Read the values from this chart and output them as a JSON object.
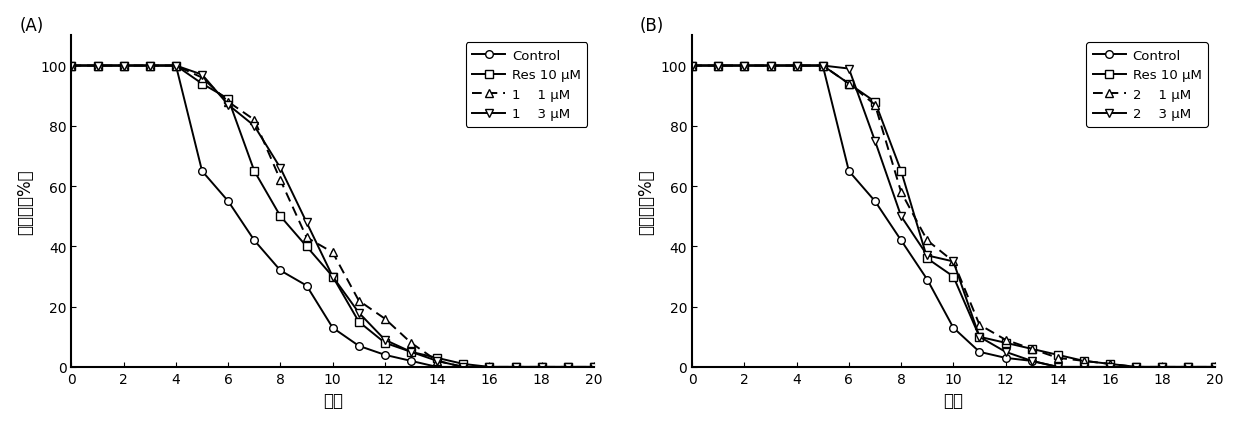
{
  "panel_A": {
    "label": "(A)",
    "series": [
      {
        "name": "Control",
        "x": [
          0,
          1,
          2,
          3,
          4,
          5,
          6,
          7,
          8,
          9,
          10,
          11,
          12,
          13,
          14,
          15,
          16,
          17,
          18,
          19,
          20
        ],
        "y": [
          100,
          100,
          100,
          100,
          100,
          65,
          55,
          42,
          32,
          27,
          13,
          7,
          4,
          2,
          0,
          0,
          0,
          0,
          0,
          0,
          0
        ],
        "marker": "o",
        "linestyle": "-",
        "markerfill": "white"
      },
      {
        "name": "Res 10 μM",
        "x": [
          0,
          1,
          2,
          3,
          4,
          5,
          6,
          7,
          8,
          9,
          10,
          11,
          12,
          13,
          14,
          15,
          16,
          17,
          18,
          19,
          20
        ],
        "y": [
          100,
          100,
          100,
          100,
          100,
          94,
          89,
          65,
          50,
          40,
          30,
          15,
          8,
          5,
          3,
          1,
          0,
          0,
          0,
          0,
          0
        ],
        "marker": "s",
        "linestyle": "-",
        "markerfill": "white"
      },
      {
        "name": "1    1 μM",
        "x": [
          0,
          1,
          2,
          3,
          4,
          5,
          6,
          7,
          8,
          9,
          10,
          11,
          12,
          13,
          14,
          15,
          16,
          17,
          18,
          19,
          20
        ],
        "y": [
          100,
          100,
          100,
          100,
          100,
          96,
          88,
          82,
          62,
          43,
          38,
          22,
          16,
          8,
          2,
          0,
          0,
          0,
          0,
          0,
          0
        ],
        "marker": "^",
        "linestyle": "--",
        "markerfill": "white"
      },
      {
        "name": "1    3 μM",
        "x": [
          0,
          1,
          2,
          3,
          4,
          5,
          6,
          7,
          8,
          9,
          10,
          11,
          12,
          13,
          14,
          15,
          16,
          17,
          18,
          19,
          20
        ],
        "y": [
          100,
          100,
          100,
          100,
          100,
          97,
          87,
          80,
          66,
          48,
          30,
          18,
          9,
          5,
          2,
          0,
          0,
          0,
          0,
          0,
          0
        ],
        "marker": "v",
        "linestyle": "-",
        "markerfill": "white"
      }
    ],
    "xlabel": "代数",
    "ylabel": "生存率（%）",
    "xlim": [
      0,
      20
    ],
    "ylim": [
      0,
      110
    ],
    "yticks": [
      0,
      20,
      40,
      60,
      80,
      100
    ],
    "xticks": [
      0,
      2,
      4,
      6,
      8,
      10,
      12,
      14,
      16,
      18,
      20
    ]
  },
  "panel_B": {
    "label": "(B)",
    "series": [
      {
        "name": "Control",
        "x": [
          0,
          1,
          2,
          3,
          4,
          5,
          6,
          7,
          8,
          9,
          10,
          11,
          12,
          13,
          14,
          15,
          16,
          17,
          18,
          19,
          20
        ],
        "y": [
          100,
          100,
          100,
          100,
          100,
          100,
          65,
          55,
          42,
          29,
          13,
          5,
          3,
          2,
          0,
          0,
          0,
          0,
          0,
          0,
          0
        ],
        "marker": "o",
        "linestyle": "-",
        "markerfill": "white"
      },
      {
        "name": "Res 10 μM",
        "x": [
          0,
          1,
          2,
          3,
          4,
          5,
          6,
          7,
          8,
          9,
          10,
          11,
          12,
          13,
          14,
          15,
          16,
          17,
          18,
          19,
          20
        ],
        "y": [
          100,
          100,
          100,
          100,
          100,
          100,
          94,
          88,
          65,
          36,
          30,
          10,
          8,
          6,
          4,
          2,
          1,
          0,
          0,
          0,
          0
        ],
        "marker": "s",
        "linestyle": "-",
        "markerfill": "white"
      },
      {
        "name": "2    1 μM",
        "x": [
          0,
          1,
          2,
          3,
          4,
          5,
          6,
          7,
          8,
          9,
          10,
          11,
          12,
          13,
          14,
          15,
          16,
          17,
          18,
          19,
          20
        ],
        "y": [
          100,
          100,
          100,
          100,
          100,
          100,
          94,
          87,
          58,
          42,
          35,
          14,
          9,
          6,
          3,
          2,
          1,
          0,
          0,
          0,
          0
        ],
        "marker": "^",
        "linestyle": "--",
        "markerfill": "white"
      },
      {
        "name": "2    3 μM",
        "x": [
          0,
          1,
          2,
          3,
          4,
          5,
          6,
          7,
          8,
          9,
          10,
          11,
          12,
          13,
          14,
          15,
          16,
          17,
          18,
          19,
          20
        ],
        "y": [
          100,
          100,
          100,
          100,
          100,
          100,
          99,
          75,
          50,
          37,
          35,
          10,
          5,
          2,
          0,
          0,
          0,
          0,
          0,
          0,
          0
        ],
        "marker": "v",
        "linestyle": "-",
        "markerfill": "white"
      }
    ],
    "xlabel": "代数",
    "ylabel": "生存率（%）",
    "xlim": [
      0,
      20
    ],
    "ylim": [
      0,
      110
    ],
    "yticks": [
      0,
      20,
      40,
      60,
      80,
      100
    ],
    "xticks": [
      0,
      2,
      4,
      6,
      8,
      10,
      12,
      14,
      16,
      18,
      20
    ]
  },
  "figure_bg": "#ffffff",
  "linewidth": 1.4,
  "markersize": 5.5,
  "legend_fontsize": 9.5,
  "label_fontsize": 12,
  "tick_fontsize": 10
}
